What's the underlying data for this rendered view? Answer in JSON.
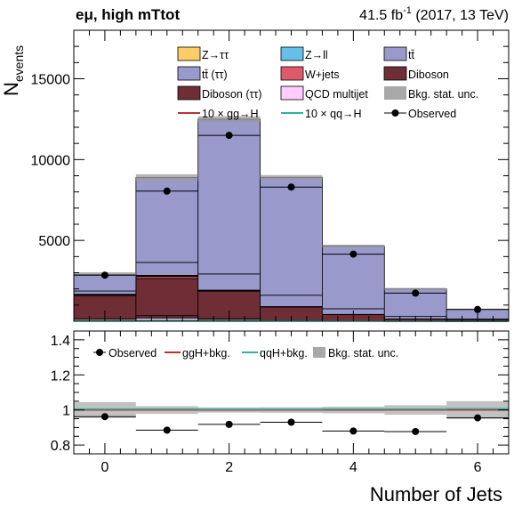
{
  "header": {
    "channel": "eμ, high mTtot",
    "lumi_value": "41.5 fb",
    "lumi_exp": "-1",
    "lumi_rest": " (2017, 13 TeV)"
  },
  "colors": {
    "ztt": "#ffcc66",
    "zll": "#64c0e8",
    "ttbar": "#9999cc",
    "ttbar_tt": "#9999cc",
    "wjets": "#de5a6a",
    "diboson": "#6f2d35",
    "diboson_tt": "#6f2d35",
    "qcd": "#ffccff",
    "stat_unc": "#999999",
    "ggH": "#c03030",
    "qqH": "#30b0a0"
  },
  "chart_data": [
    {
      "type": "bar",
      "stacked": true,
      "ylabel": "N",
      "ylabel_sub": "events",
      "x_edges": [
        -0.5,
        0.5,
        1.5,
        2.5,
        3.5,
        4.5,
        5.5,
        6.5
      ],
      "xlim": [
        -0.5,
        6.5
      ],
      "ylim": [
        0,
        18000
      ],
      "y_ticks": [
        5000,
        10000,
        15000
      ],
      "x_ticks": [
        0,
        2,
        4,
        6
      ],
      "series": [
        {
          "name": "QCD multijet",
          "key": "qcd",
          "values": [
            60,
            200,
            40,
            20,
            10,
            5,
            3
          ]
        },
        {
          "name": "Diboson (ττ)",
          "key": "diboson_tt",
          "values": [
            100,
            150,
            120,
            60,
            30,
            15,
            10
          ]
        },
        {
          "name": "Diboson",
          "key": "diboson",
          "values": [
            1400,
            2300,
            1700,
            800,
            370,
            120,
            60
          ]
        },
        {
          "name": "W+jets",
          "key": "wjets",
          "values": [
            60,
            120,
            30,
            10,
            5,
            2,
            1
          ]
        },
        {
          "name": "Z→ll",
          "key": "zll",
          "values": [
            20,
            30,
            15,
            8,
            4,
            2,
            1
          ]
        },
        {
          "name": "Z→ττ",
          "key": "ztt",
          "values": [
            30,
            40,
            20,
            10,
            5,
            3,
            2
          ]
        },
        {
          "name": "tt̄ (ττ)",
          "key": "ttbar_tt",
          "values": [
            200,
            800,
            1000,
            700,
            350,
            150,
            60
          ]
        },
        {
          "name": "tt̄",
          "key": "ttbar",
          "values": [
            1030,
            5250,
            9575,
            7292,
            3876,
            1703,
            603
          ]
        }
      ],
      "stat_unc": [
        130,
        200,
        180,
        140,
        90,
        60,
        40
      ],
      "observed": {
        "name": "Observed",
        "x": [
          0,
          1,
          2,
          3,
          4,
          5,
          6
        ],
        "values": [
          2850,
          8050,
          11500,
          8300,
          4150,
          1740,
          730
        ]
      },
      "signals": [
        {
          "name": "10 × gg→H",
          "key": "ggH",
          "values": [
            80,
            60,
            40,
            25,
            15,
            8,
            4
          ]
        },
        {
          "name": "10 × qq→H",
          "key": "qqH",
          "values": [
            50,
            50,
            45,
            35,
            20,
            10,
            5
          ]
        }
      ],
      "legend": {
        "placement": "top",
        "entries": [
          {
            "label": "Z→ττ",
            "style": "box",
            "key": "ztt"
          },
          {
            "label": "Z→ll",
            "style": "box",
            "key": "zll"
          },
          {
            "label": "tt̄",
            "style": "box",
            "key": "ttbar"
          },
          {
            "label": "tt̄ (ττ)",
            "style": "box",
            "key": "ttbar_tt"
          },
          {
            "label": "W+jets",
            "style": "box",
            "key": "wjets"
          },
          {
            "label": "Diboson",
            "style": "box",
            "key": "diboson"
          },
          {
            "label": "Diboson (ττ)",
            "style": "box",
            "key": "diboson_tt"
          },
          {
            "label": "QCD multijet",
            "style": "box",
            "key": "qcd"
          },
          {
            "label": "Bkg. stat. unc.",
            "style": "fill",
            "key": "stat_unc"
          },
          {
            "label": "10 × gg→H",
            "style": "line",
            "key": "ggH"
          },
          {
            "label": "10 × qq→H",
            "style": "line",
            "key": "qqH"
          },
          {
            "label": "Observed",
            "style": "marker"
          }
        ]
      }
    },
    {
      "type": "scatter",
      "xlabel": "Number of Jets",
      "xlim": [
        -0.5,
        6.5
      ],
      "ylim": [
        0.75,
        1.45
      ],
      "y_ticks": [
        0.8,
        1,
        1.2,
        1.4
      ],
      "y_tick_labels": [
        "0.8",
        "1",
        "1.2",
        "1.4"
      ],
      "x_ticks": [
        0,
        2,
        4,
        6
      ],
      "observed_ratio": {
        "name": "Observed",
        "x": [
          0,
          1,
          2,
          3,
          4,
          5,
          6
        ],
        "values": [
          0.962,
          0.885,
          0.918,
          0.93,
          0.88,
          0.877,
          0.955
        ]
      },
      "ggH_ratio": [
        1.0,
        1.0,
        1.0,
        1.0,
        1.0,
        1.0,
        1.0
      ],
      "qqH_ratio": [
        1.005,
        1.005,
        1.004,
        1.004,
        1.005,
        1.005,
        1.007
      ],
      "stat_unc_ratio": [
        0.045,
        0.022,
        0.015,
        0.016,
        0.019,
        0.027,
        0.05
      ],
      "legend": {
        "placement": "top",
        "entries": [
          {
            "label": "Observed",
            "style": "marker"
          },
          {
            "label": "ggH+bkg.",
            "style": "line",
            "key": "ggH"
          },
          {
            "label": "qqH+bkg.",
            "style": "line",
            "key": "qqH"
          },
          {
            "label": "Bkg. stat. unc.",
            "style": "fill",
            "key": "stat_unc"
          }
        ]
      }
    }
  ]
}
